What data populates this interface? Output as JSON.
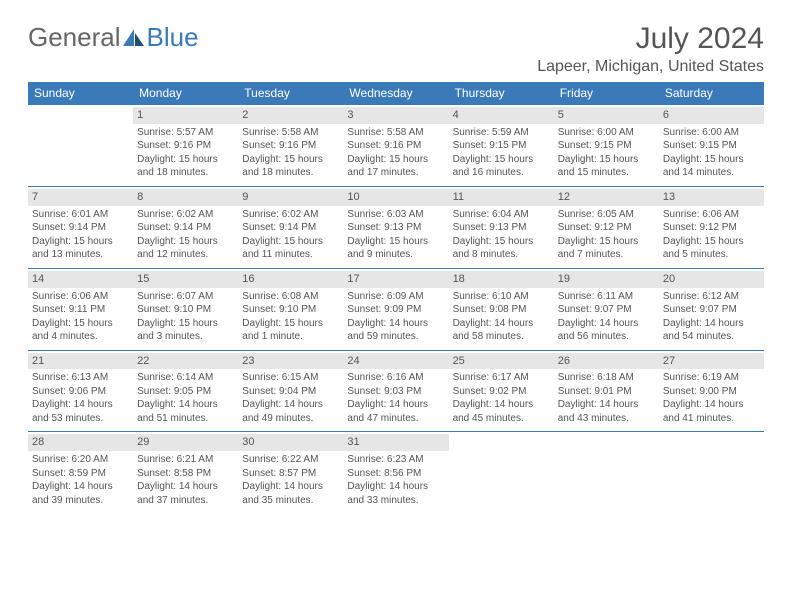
{
  "logo": {
    "part1": "General",
    "part2": "Blue"
  },
  "title": "July 2024",
  "location": "Lapeer, Michigan, United States",
  "colors": {
    "header_bg": "#3a7ab8",
    "header_fg": "#ffffff",
    "daynum_bg": "#e6e6e6",
    "border": "#3a7ab8",
    "text": "#555555",
    "logo_gray": "#666666",
    "logo_blue": "#3a7ab8",
    "page_bg": "#ffffff"
  },
  "weekdays": [
    "Sunday",
    "Monday",
    "Tuesday",
    "Wednesday",
    "Thursday",
    "Friday",
    "Saturday"
  ],
  "grid": [
    [
      null,
      {
        "n": "1",
        "sr": "5:57 AM",
        "ss": "9:16 PM",
        "dl": "15 hours and 18 minutes."
      },
      {
        "n": "2",
        "sr": "5:58 AM",
        "ss": "9:16 PM",
        "dl": "15 hours and 18 minutes."
      },
      {
        "n": "3",
        "sr": "5:58 AM",
        "ss": "9:16 PM",
        "dl": "15 hours and 17 minutes."
      },
      {
        "n": "4",
        "sr": "5:59 AM",
        "ss": "9:15 PM",
        "dl": "15 hours and 16 minutes."
      },
      {
        "n": "5",
        "sr": "6:00 AM",
        "ss": "9:15 PM",
        "dl": "15 hours and 15 minutes."
      },
      {
        "n": "6",
        "sr": "6:00 AM",
        "ss": "9:15 PM",
        "dl": "15 hours and 14 minutes."
      }
    ],
    [
      {
        "n": "7",
        "sr": "6:01 AM",
        "ss": "9:14 PM",
        "dl": "15 hours and 13 minutes."
      },
      {
        "n": "8",
        "sr": "6:02 AM",
        "ss": "9:14 PM",
        "dl": "15 hours and 12 minutes."
      },
      {
        "n": "9",
        "sr": "6:02 AM",
        "ss": "9:14 PM",
        "dl": "15 hours and 11 minutes."
      },
      {
        "n": "10",
        "sr": "6:03 AM",
        "ss": "9:13 PM",
        "dl": "15 hours and 9 minutes."
      },
      {
        "n": "11",
        "sr": "6:04 AM",
        "ss": "9:13 PM",
        "dl": "15 hours and 8 minutes."
      },
      {
        "n": "12",
        "sr": "6:05 AM",
        "ss": "9:12 PM",
        "dl": "15 hours and 7 minutes."
      },
      {
        "n": "13",
        "sr": "6:06 AM",
        "ss": "9:12 PM",
        "dl": "15 hours and 5 minutes."
      }
    ],
    [
      {
        "n": "14",
        "sr": "6:06 AM",
        "ss": "9:11 PM",
        "dl": "15 hours and 4 minutes."
      },
      {
        "n": "15",
        "sr": "6:07 AM",
        "ss": "9:10 PM",
        "dl": "15 hours and 3 minutes."
      },
      {
        "n": "16",
        "sr": "6:08 AM",
        "ss": "9:10 PM",
        "dl": "15 hours and 1 minute."
      },
      {
        "n": "17",
        "sr": "6:09 AM",
        "ss": "9:09 PM",
        "dl": "14 hours and 59 minutes."
      },
      {
        "n": "18",
        "sr": "6:10 AM",
        "ss": "9:08 PM",
        "dl": "14 hours and 58 minutes."
      },
      {
        "n": "19",
        "sr": "6:11 AM",
        "ss": "9:07 PM",
        "dl": "14 hours and 56 minutes."
      },
      {
        "n": "20",
        "sr": "6:12 AM",
        "ss": "9:07 PM",
        "dl": "14 hours and 54 minutes."
      }
    ],
    [
      {
        "n": "21",
        "sr": "6:13 AM",
        "ss": "9:06 PM",
        "dl": "14 hours and 53 minutes."
      },
      {
        "n": "22",
        "sr": "6:14 AM",
        "ss": "9:05 PM",
        "dl": "14 hours and 51 minutes."
      },
      {
        "n": "23",
        "sr": "6:15 AM",
        "ss": "9:04 PM",
        "dl": "14 hours and 49 minutes."
      },
      {
        "n": "24",
        "sr": "6:16 AM",
        "ss": "9:03 PM",
        "dl": "14 hours and 47 minutes."
      },
      {
        "n": "25",
        "sr": "6:17 AM",
        "ss": "9:02 PM",
        "dl": "14 hours and 45 minutes."
      },
      {
        "n": "26",
        "sr": "6:18 AM",
        "ss": "9:01 PM",
        "dl": "14 hours and 43 minutes."
      },
      {
        "n": "27",
        "sr": "6:19 AM",
        "ss": "9:00 PM",
        "dl": "14 hours and 41 minutes."
      }
    ],
    [
      {
        "n": "28",
        "sr": "6:20 AM",
        "ss": "8:59 PM",
        "dl": "14 hours and 39 minutes."
      },
      {
        "n": "29",
        "sr": "6:21 AM",
        "ss": "8:58 PM",
        "dl": "14 hours and 37 minutes."
      },
      {
        "n": "30",
        "sr": "6:22 AM",
        "ss": "8:57 PM",
        "dl": "14 hours and 35 minutes."
      },
      {
        "n": "31",
        "sr": "6:23 AM",
        "ss": "8:56 PM",
        "dl": "14 hours and 33 minutes."
      },
      null,
      null,
      null
    ]
  ],
  "labels": {
    "sunrise": "Sunrise:",
    "sunset": "Sunset:",
    "daylight": "Daylight:"
  }
}
